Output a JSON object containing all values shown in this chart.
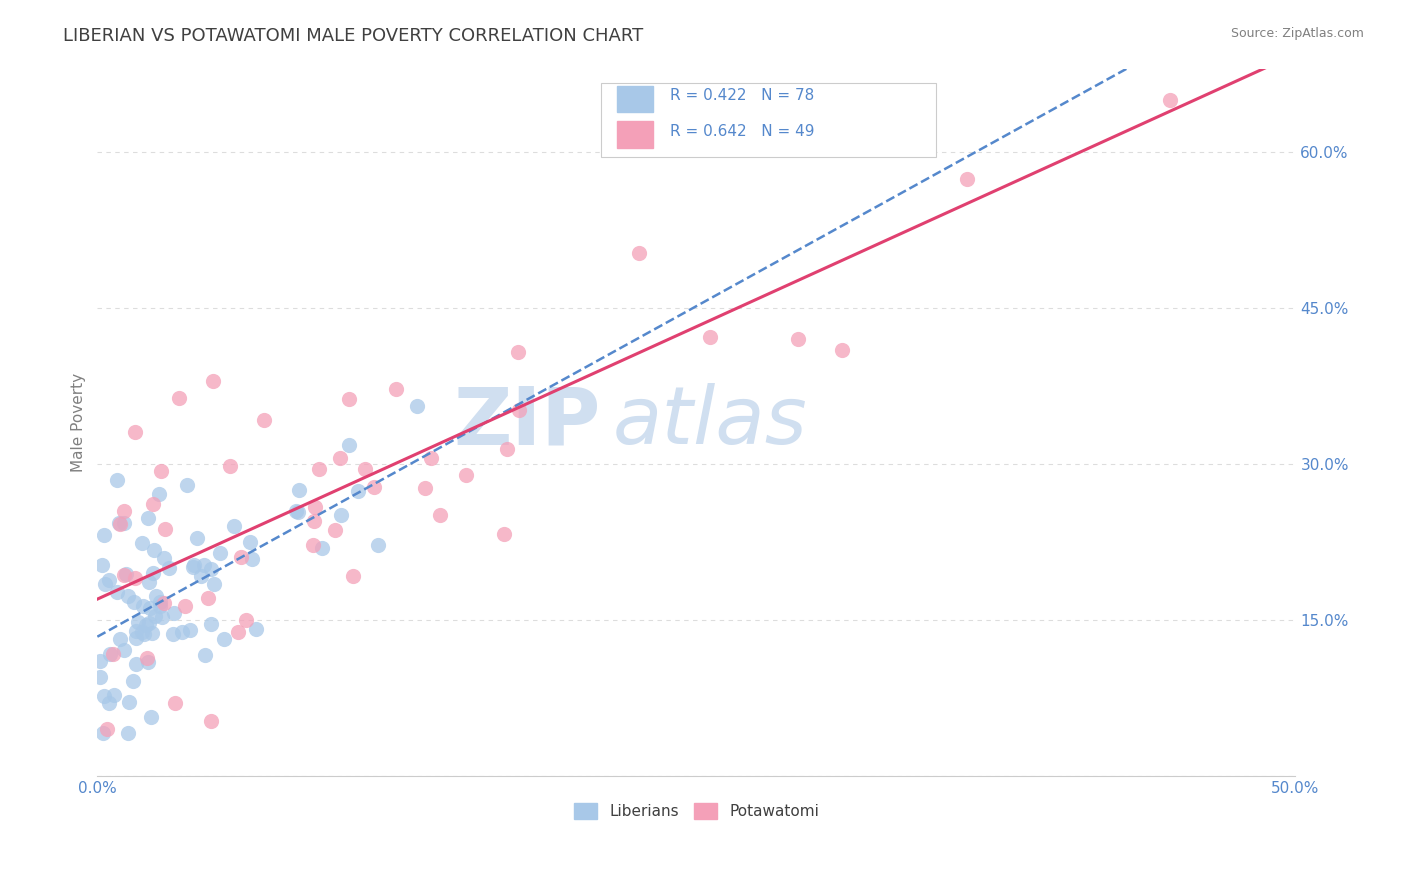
{
  "title": "LIBERIAN VS POTAWATOMI MALE POVERTY CORRELATION CHART",
  "source": "Source: ZipAtlas.com",
  "ylabel": "Male Poverty",
  "xlim": [
    0.0,
    0.5
  ],
  "ylim": [
    0.0,
    0.68
  ],
  "yticks": [
    0.0,
    0.15,
    0.3,
    0.45,
    0.6
  ],
  "yticklabels": [
    "",
    "15.0%",
    "30.0%",
    "45.0%",
    "60.0%"
  ],
  "liberian_color": "#a8c8e8",
  "potawatomi_color": "#f4a0b8",
  "liberian_line_color": "#5588cc",
  "potawatomi_line_color": "#e04070",
  "R_liberian": 0.422,
  "N_liberian": 78,
  "R_potawatomi": 0.642,
  "N_potawatomi": 49,
  "watermark_zip": "ZIP",
  "watermark_atlas": "atlas",
  "watermark_color": "#d0dff0",
  "title_color": "#404040",
  "title_fontsize": 13,
  "axis_label_color": "#808080",
  "tick_color": "#5588cc",
  "source_color": "#808080",
  "legend_label_color": "#333333",
  "legend_value_color": "#5588cc",
  "background_color": "#ffffff",
  "grid_color": "#dddddd"
}
